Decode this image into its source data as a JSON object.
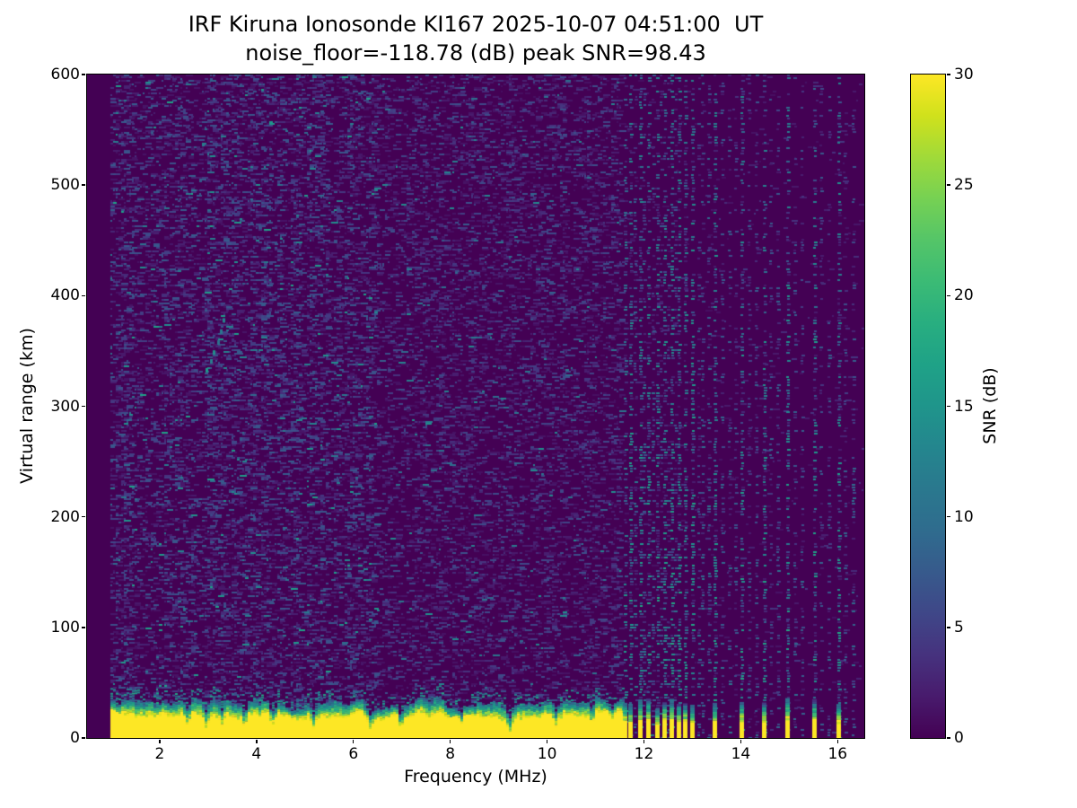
{
  "figure": {
    "background": "#ffffff",
    "text_color": "#000000"
  },
  "chart_data": {
    "type": "heatmap",
    "title": "IRF Kiruna Ionosonde KI167 2025-10-07 04:51:00  UT",
    "subtitle": "noise_floor=-118.78 (dB) peak SNR=98.43",
    "xlabel": "Frequency (MHz)",
    "ylabel": "Virtual range (km)",
    "colorbar_label": "SNR (dB)",
    "xlim": [
      0.5,
      16.55
    ],
    "ylim": [
      0,
      600
    ],
    "clim": [
      0,
      30
    ],
    "xticks": [
      2,
      4,
      6,
      8,
      10,
      12,
      14,
      16
    ],
    "yticks": [
      0,
      100,
      200,
      300,
      400,
      500,
      600
    ],
    "cticks": [
      0,
      5,
      10,
      15,
      20,
      25,
      30
    ],
    "grid": false,
    "colormap": "viridis",
    "colormap_stops": [
      "#440154",
      "#481b6d",
      "#46327e",
      "#3f4788",
      "#375a8c",
      "#2f6c8e",
      "#2a788e",
      "#24868e",
      "#1f958b",
      "#1fa287",
      "#28ae80",
      "#3bbb75",
      "#54c568",
      "#76d153",
      "#a0da39",
      "#d0e11c",
      "#fde725"
    ],
    "seed": 1337,
    "data_freq_range": [
      1.0,
      16.5
    ],
    "noise_regions": [
      {
        "f_min": 1.0,
        "f_max": 6.5,
        "density": 0.26,
        "v_base": 1.2,
        "v_spread": 6.5,
        "hi_prob": 0.04,
        "hi_v": 14
      },
      {
        "f_min": 6.5,
        "f_max": 11.57,
        "density": 0.2,
        "v_base": 1.0,
        "v_spread": 5.5,
        "hi_prob": 0.025,
        "hi_v": 12
      },
      {
        "f_min": 11.57,
        "f_max": 16.55,
        "density": 0.015,
        "v_base": 1.0,
        "v_spread": 3.5,
        "hi_prob": 0.0,
        "hi_v": 6
      }
    ],
    "ground_clutter": {
      "f_min": 1.0,
      "continuous_f_max": 11.57,
      "base_km": 16,
      "var_km": 9,
      "peak_snr_db": 30,
      "notches": [
        {
          "f": 2.56,
          "d": 9,
          "w": 0.06
        },
        {
          "f": 2.95,
          "d": 8,
          "w": 0.05
        },
        {
          "f": 3.25,
          "d": 9,
          "w": 0.05
        },
        {
          "f": 3.74,
          "d": 11,
          "w": 0.06
        },
        {
          "f": 4.3,
          "d": 12,
          "w": 0.07
        },
        {
          "f": 5.15,
          "d": 9,
          "w": 0.05
        },
        {
          "f": 6.32,
          "d": 13,
          "w": 0.08
        },
        {
          "f": 6.95,
          "d": 10,
          "w": 0.06
        },
        {
          "f": 8.2,
          "d": 7,
          "w": 0.05
        },
        {
          "f": 9.2,
          "d": 11,
          "w": 0.06
        },
        {
          "f": 10.15,
          "d": 9,
          "w": 0.05
        },
        {
          "f": 10.9,
          "d": 8,
          "w": 0.05
        },
        {
          "f": 11.3,
          "d": 7,
          "w": 0.05
        }
      ]
    },
    "interference_stripes": [
      {
        "f": 11.6,
        "s": 0.8,
        "clutter": true
      },
      {
        "f": 11.72,
        "s": 1.0,
        "clutter": true
      },
      {
        "f": 11.8,
        "s": 0.55,
        "clutter": false
      },
      {
        "f": 11.91,
        "s": 1.0,
        "clutter": true
      },
      {
        "f": 12.0,
        "s": 0.6,
        "clutter": false
      },
      {
        "f": 12.09,
        "s": 1.0,
        "clutter": true
      },
      {
        "f": 12.18,
        "s": 0.5,
        "clutter": false
      },
      {
        "f": 12.26,
        "s": 1.0,
        "clutter": true
      },
      {
        "f": 12.34,
        "s": 0.45,
        "clutter": false
      },
      {
        "f": 12.41,
        "s": 1.0,
        "clutter": true
      },
      {
        "f": 12.49,
        "s": 0.45,
        "clutter": false
      },
      {
        "f": 12.56,
        "s": 1.0,
        "clutter": true
      },
      {
        "f": 12.64,
        "s": 0.45,
        "clutter": false
      },
      {
        "f": 12.72,
        "s": 1.0,
        "clutter": true
      },
      {
        "f": 12.85,
        "s": 0.9,
        "clutter": true
      },
      {
        "f": 13.0,
        "s": 1.0,
        "clutter": true
      },
      {
        "f": 13.12,
        "s": 0.4,
        "clutter": false
      },
      {
        "f": 13.2,
        "s": 0.5,
        "clutter": false
      },
      {
        "f": 13.33,
        "s": 0.55,
        "clutter": false
      },
      {
        "f": 13.46,
        "s": 1.0,
        "clutter": true
      },
      {
        "f": 13.6,
        "s": 0.4,
        "clutter": false
      },
      {
        "f": 13.75,
        "s": 0.45,
        "clutter": false
      },
      {
        "f": 13.88,
        "s": 0.35,
        "clutter": false
      },
      {
        "f": 14.02,
        "s": 1.0,
        "clutter": true
      },
      {
        "f": 14.15,
        "s": 0.35,
        "clutter": false
      },
      {
        "f": 14.3,
        "s": 0.4,
        "clutter": false
      },
      {
        "f": 14.48,
        "s": 1.0,
        "clutter": true
      },
      {
        "f": 14.6,
        "s": 0.35,
        "clutter": false
      },
      {
        "f": 14.75,
        "s": 0.4,
        "clutter": false
      },
      {
        "f": 14.96,
        "s": 1.0,
        "clutter": true
      },
      {
        "f": 15.1,
        "s": 0.35,
        "clutter": false
      },
      {
        "f": 15.25,
        "s": 0.4,
        "clutter": false
      },
      {
        "f": 15.51,
        "s": 1.0,
        "clutter": true
      },
      {
        "f": 15.65,
        "s": 0.35,
        "clutter": false
      },
      {
        "f": 15.8,
        "s": 0.4,
        "clutter": false
      },
      {
        "f": 16.02,
        "s": 1.0,
        "clutter": true
      },
      {
        "f": 16.15,
        "s": 0.35,
        "clutter": false
      },
      {
        "f": 16.3,
        "s": 0.4,
        "clutter": false
      }
    ],
    "echo_trace": {
      "points": [
        [
          2.97,
          333
        ],
        [
          3.05,
          341
        ],
        [
          3.12,
          349
        ],
        [
          3.2,
          358
        ],
        [
          3.27,
          368
        ],
        [
          3.32,
          378
        ]
      ],
      "v_db": 13
    }
  }
}
